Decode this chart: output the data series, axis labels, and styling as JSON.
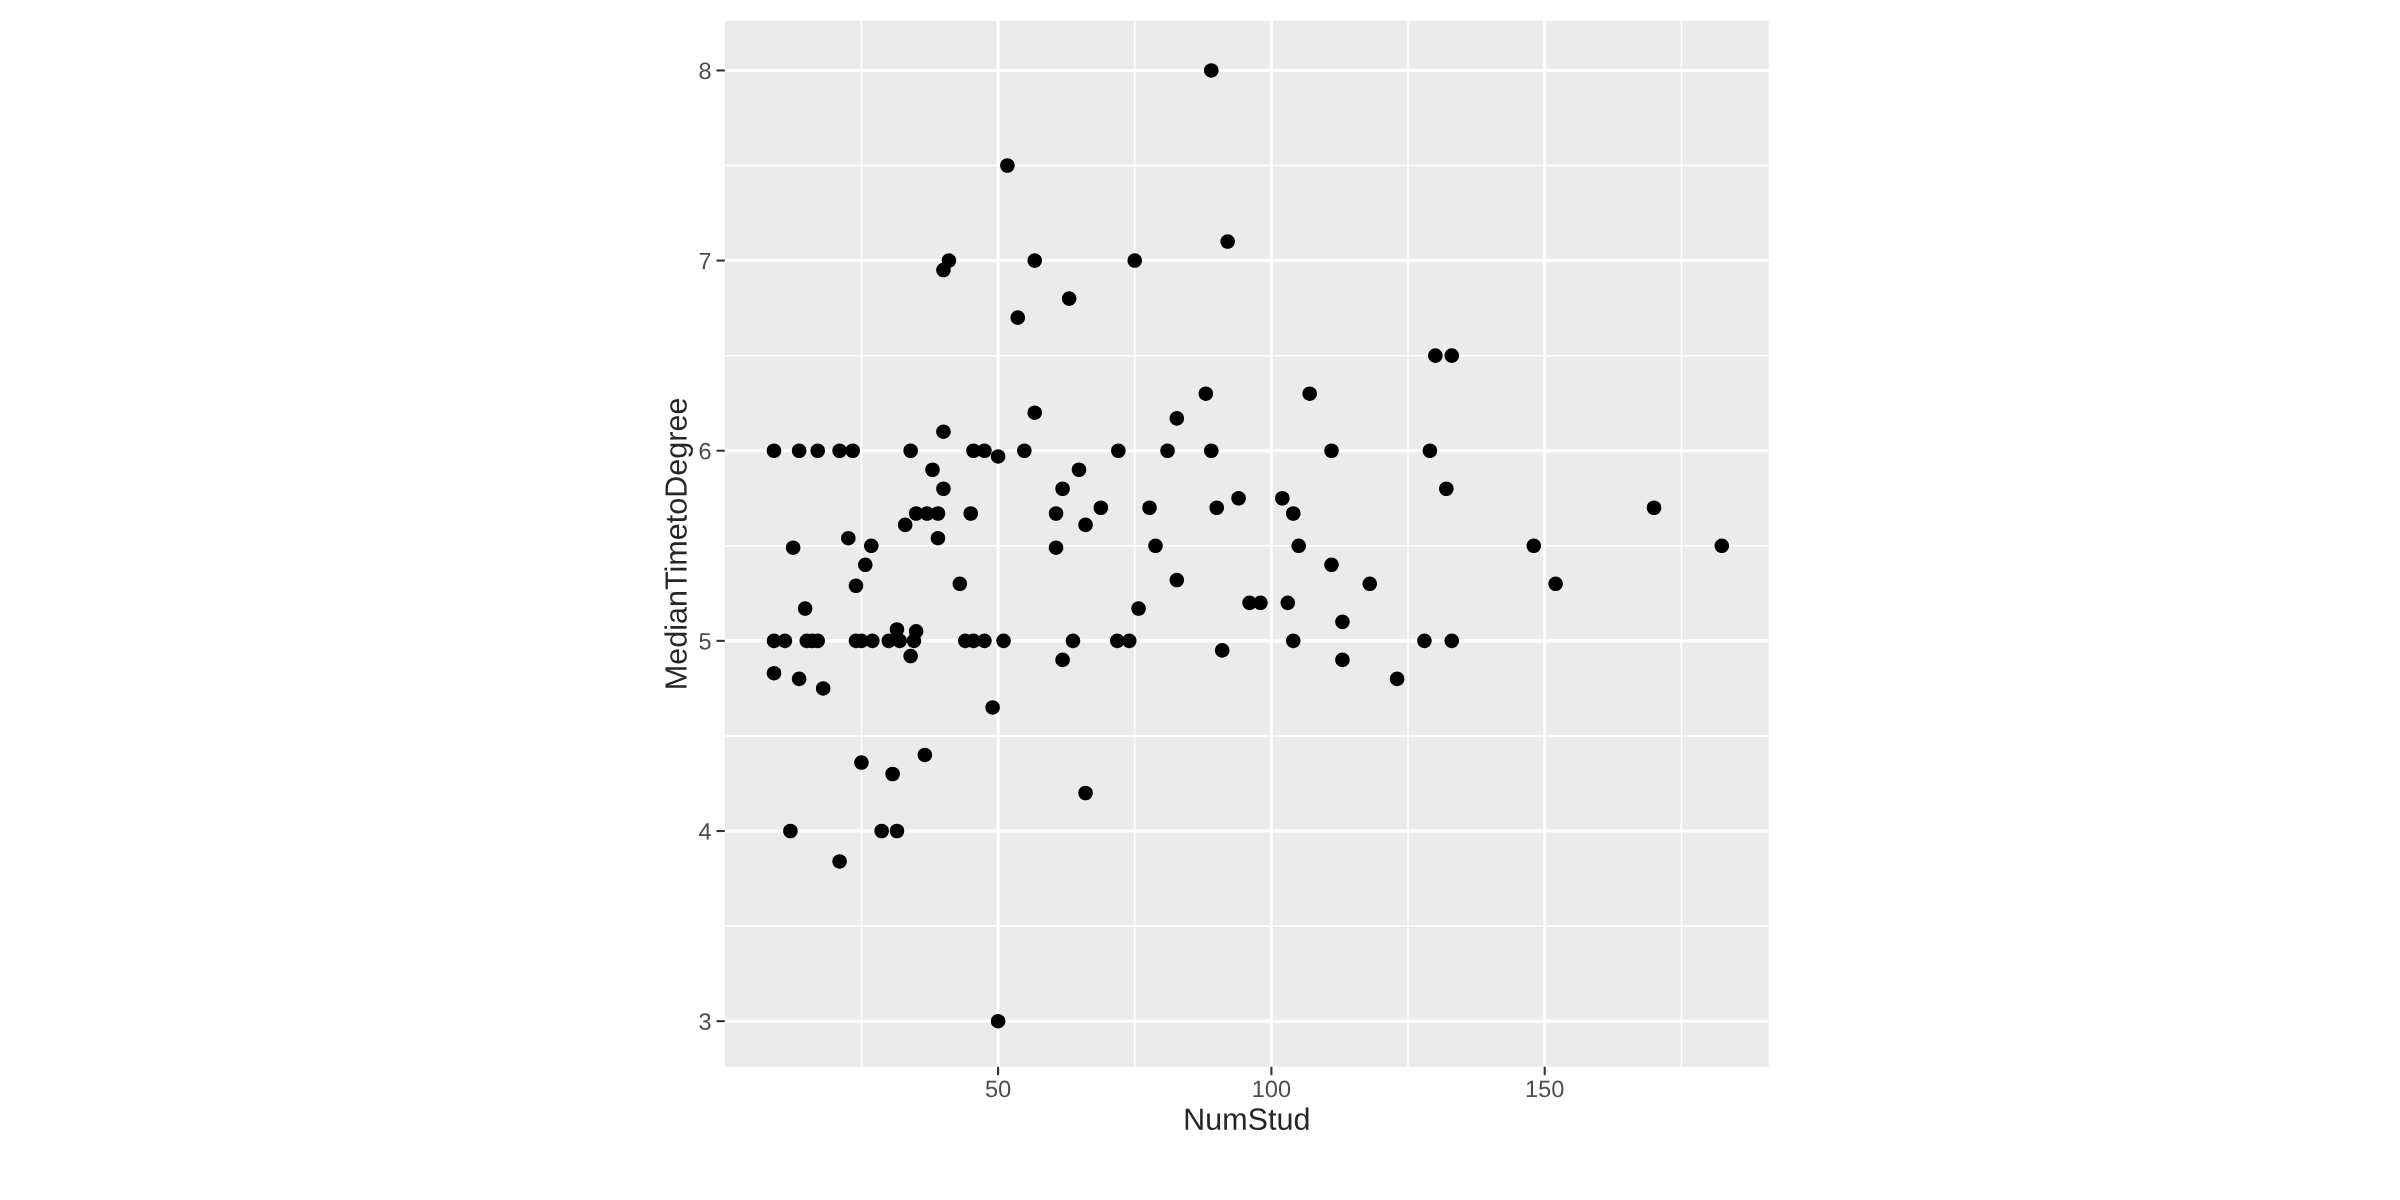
{
  "chart_data": {
    "type": "scatter",
    "xlabel": "NumStud",
    "ylabel": "MedianTimetoDegree",
    "xlim": [
      0,
      191
    ],
    "ylim": [
      2.76,
      8.26
    ],
    "xticks": [
      50,
      100,
      150
    ],
    "yticks": [
      3,
      4,
      5,
      6,
      7,
      8
    ],
    "grid": true,
    "marker": "circle",
    "legend": false,
    "series": [
      {
        "color": "#000000",
        "x": [
          9,
          9,
          9,
          11,
          12,
          12.5,
          13.6,
          13.6,
          14.7,
          15,
          16,
          17,
          17,
          18,
          21,
          21,
          22.6,
          23.4,
          24,
          24,
          25,
          25,
          25.7,
          26.8,
          27,
          28.7,
          30,
          30.7,
          31.5,
          31.5,
          32,
          33,
          34,
          34,
          34.6,
          35,
          35,
          36.6,
          37,
          38,
          39,
          39,
          40,
          40,
          40,
          41,
          43,
          44,
          45,
          45.5,
          45.5,
          47.5,
          47.5,
          49,
          50,
          50,
          51,
          51.7,
          53.6,
          54.8,
          56.7,
          56.7,
          60.6,
          60.6,
          61.8,
          61.8,
          63,
          63.7,
          64.8,
          66,
          66,
          68.8,
          71.8,
          72,
          74,
          75,
          75.7,
          77.7,
          78.8,
          81,
          82.7,
          82.7,
          88,
          89,
          89,
          90,
          91,
          92,
          94,
          96,
          98,
          102,
          103,
          104,
          104,
          105,
          107,
          111,
          111,
          113,
          113,
          118,
          123,
          128,
          129,
          130,
          132,
          133,
          133,
          148,
          152,
          170,
          182.4
        ],
        "values": [
          6.0,
          5.0,
          4.83,
          5.0,
          4.0,
          5.49,
          6.0,
          4.8,
          5.17,
          5.0,
          5.0,
          5.0,
          6.0,
          4.75,
          6.0,
          3.84,
          5.54,
          6.0,
          5.29,
          5.0,
          5.0,
          4.36,
          5.4,
          5.5,
          5.0,
          4.0,
          5.0,
          4.3,
          4.0,
          5.06,
          5.0,
          5.61,
          6.0,
          4.92,
          5.0,
          5.05,
          5.67,
          4.4,
          5.67,
          5.9,
          5.67,
          5.54,
          5.8,
          6.1,
          6.95,
          7.0,
          5.3,
          5.0,
          5.67,
          5.0,
          6.0,
          6.0,
          5.0,
          4.65,
          5.97,
          3.0,
          5.0,
          7.5,
          6.7,
          6.0,
          7.0,
          6.2,
          5.67,
          5.49,
          5.8,
          4.9,
          6.8,
          5.0,
          5.9,
          5.61,
          4.2,
          5.7,
          5.0,
          6.0,
          5.0,
          7.0,
          5.17,
          5.7,
          5.5,
          6.0,
          6.17,
          5.32,
          6.3,
          8.0,
          6.0,
          5.7,
          4.95,
          7.1,
          5.75,
          5.2,
          5.2,
          5.75,
          5.2,
          5.67,
          5.0,
          5.5,
          6.3,
          6.0,
          5.4,
          5.1,
          4.9,
          5.3,
          4.8,
          5.0,
          6.0,
          6.5,
          5.8,
          6.5,
          5.0,
          5.5,
          5.3,
          5.7,
          5.5
        ]
      }
    ]
  }
}
